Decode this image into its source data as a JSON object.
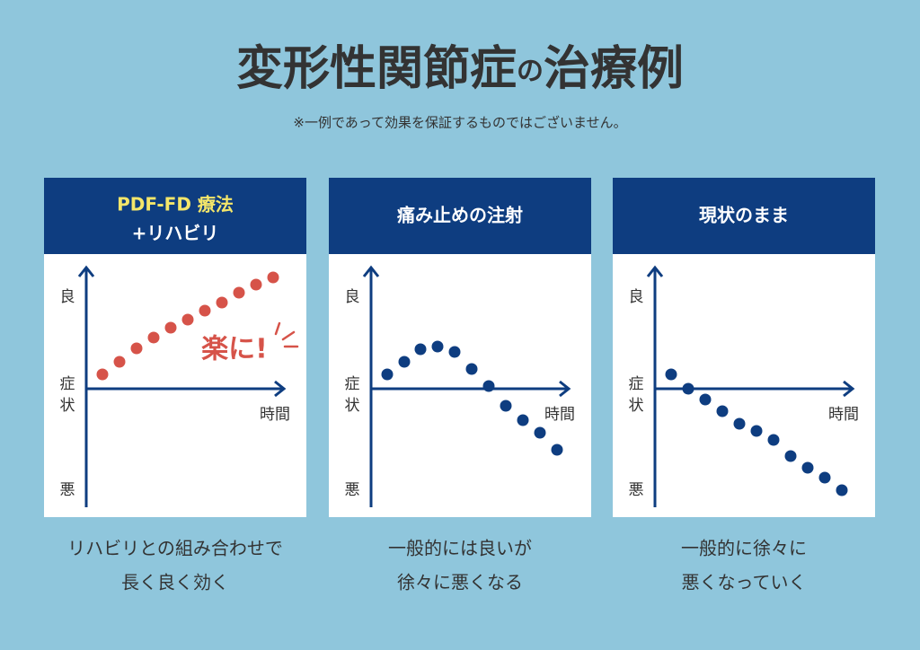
{
  "title": {
    "main": "変形性関節症",
    "particle": "の",
    "end": "治療例"
  },
  "note": "※一例であって効果を保証するものではございません。",
  "panels": [
    {
      "header": [
        "PDF-FD 療法",
        "+リハビリ"
      ],
      "y_top": "良",
      "y_mid": [
        "症",
        "状"
      ],
      "y_bottom": "悪",
      "x_label": "時間",
      "annotation": "楽に!",
      "caption": [
        "リハビリとの組み合わせで",
        "長く良く効く"
      ]
    },
    {
      "header": [
        "痛み止めの注射"
      ],
      "y_top": "良",
      "y_mid": [
        "症",
        "状"
      ],
      "y_bottom": "悪",
      "x_label": "時間",
      "caption": [
        "一般的には良いが",
        "徐々に悪くなる"
      ]
    },
    {
      "header": [
        "現状のまま"
      ],
      "y_top": "良",
      "y_mid": [
        "症",
        "状"
      ],
      "y_bottom": "悪",
      "x_label": "時間",
      "caption": [
        "一般的に徐々に",
        "悪くなっていく"
      ]
    }
  ]
}
